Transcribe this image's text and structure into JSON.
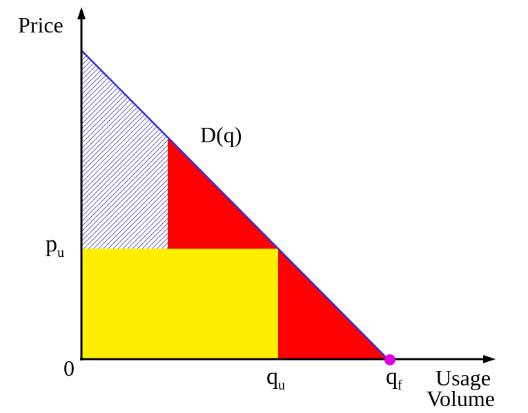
{
  "axes": {
    "y_label": "Price",
    "x_label_line1": "Usage",
    "x_label_line2": "Volume",
    "origin_label": "0"
  },
  "curve_label": "D(q)",
  "price_tick": {
    "main": "p",
    "sub": "u"
  },
  "qty_ticks": [
    {
      "main": "q",
      "sub": "u"
    },
    {
      "main": "q",
      "sub": "f"
    }
  ],
  "colors": {
    "demand_line": "#2e2ee6",
    "red_region": "#ff0000",
    "yellow_region": "#ffee00",
    "hatch_fill": "#3a3a9a",
    "endpoint_marker": "#e000e0",
    "axis": "#000000"
  }
}
